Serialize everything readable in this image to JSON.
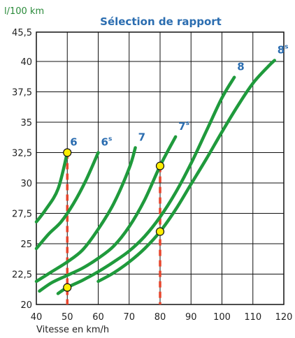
{
  "chart_data": {
    "type": "line",
    "title": "Sélection de rapport",
    "xlabel": "Vitesse en km/h",
    "ylabel": "l/100 km",
    "xlim": [
      40,
      120
    ],
    "ylim": [
      20,
      45.5
    ],
    "x_ticks": [
      "40",
      "50",
      "60",
      "70",
      "80",
      "90",
      "100",
      "110",
      "120"
    ],
    "y_ticks": [
      "20",
      "22,5",
      "25",
      "27,5",
      "30",
      "32,5",
      "35",
      "37,5",
      "40",
      "45,5"
    ],
    "grid": true,
    "colors": {
      "curve": "#1f9a3c",
      "reference": "#e8452c",
      "marker_fill": "#ffee00",
      "label": "#2b6db0"
    },
    "series": [
      {
        "name": "6",
        "label": "6",
        "sup": "",
        "x": [
          40,
          43,
          47,
          50
        ],
        "y": [
          26.8,
          27.8,
          29.5,
          32.5
        ]
      },
      {
        "name": "6s",
        "label": "6",
        "sup": "s",
        "x": [
          40,
          44,
          48,
          52,
          56,
          60
        ],
        "y": [
          24.6,
          25.8,
          26.8,
          28.3,
          30.2,
          32.5
        ]
      },
      {
        "name": "7",
        "label": "7",
        "sup": "",
        "x": [
          40,
          45,
          50,
          55,
          60,
          65,
          70,
          72
        ],
        "y": [
          21.9,
          22.7,
          23.5,
          24.5,
          26.2,
          28.3,
          31.2,
          32.9
        ]
      },
      {
        "name": "7s",
        "label": "7",
        "sup": "s",
        "x": [
          41,
          45,
          50,
          55,
          60,
          65,
          70,
          75,
          80,
          85
        ],
        "y": [
          21.1,
          21.8,
          22.4,
          23.0,
          23.8,
          24.8,
          26.4,
          28.6,
          31.4,
          33.8
        ]
      },
      {
        "name": "8",
        "label": "8",
        "sup": "",
        "x": [
          47,
          50,
          55,
          60,
          65,
          70,
          75,
          80,
          85,
          90,
          95,
          100,
          104
        ],
        "y": [
          20.9,
          21.4,
          22.0,
          22.7,
          23.5,
          24.4,
          25.6,
          27.2,
          29.2,
          31.6,
          34.3,
          37.0,
          38.7
        ]
      },
      {
        "name": "8s",
        "label": "8",
        "sup": "s",
        "x": [
          60,
          65,
          70,
          75,
          80,
          85,
          90,
          95,
          100,
          105,
          110,
          115,
          117
        ],
        "y": [
          21.9,
          22.6,
          23.5,
          24.6,
          26.0,
          27.8,
          29.9,
          32.0,
          34.2,
          36.3,
          38.2,
          39.6,
          40.2
        ]
      }
    ],
    "reference_lines": [
      {
        "x": 50
      },
      {
        "x": 80
      }
    ],
    "markers": [
      {
        "x": 50,
        "y": 32.5
      },
      {
        "x": 50,
        "y": 21.4
      },
      {
        "x": 80,
        "y": 31.4
      },
      {
        "x": 80,
        "y": 26.0
      }
    ]
  }
}
